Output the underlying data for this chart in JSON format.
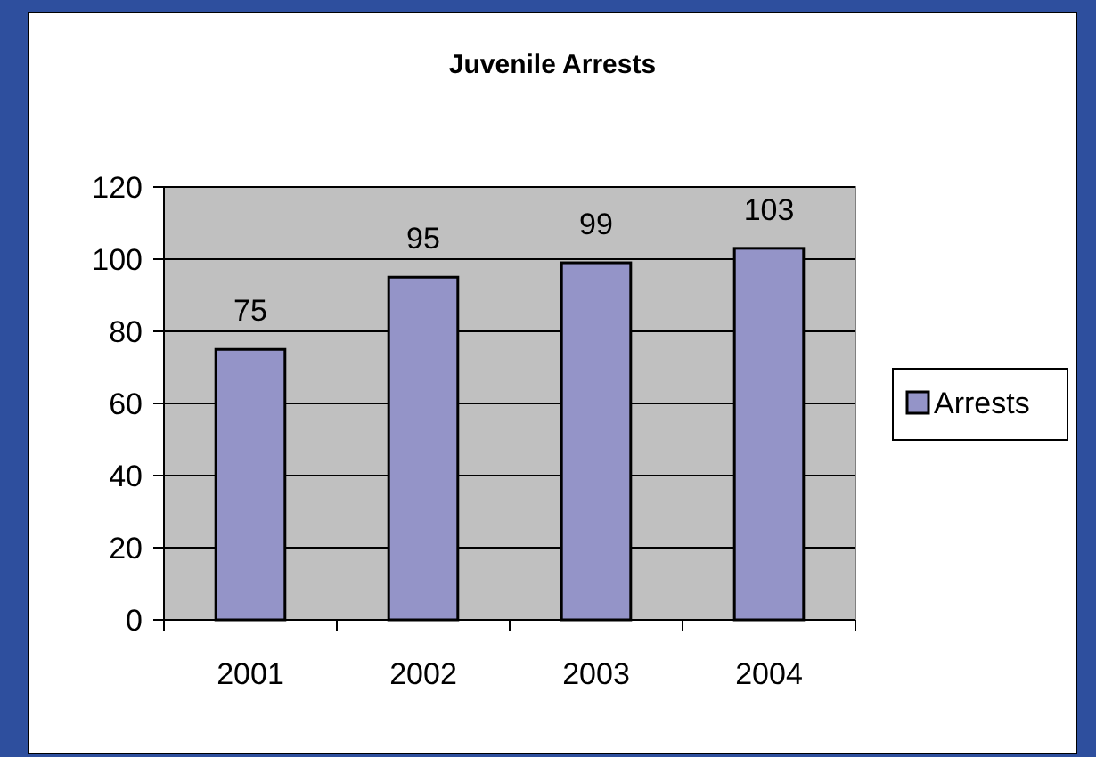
{
  "chart_data": {
    "type": "bar",
    "title": "Juvenile Arrests",
    "categories": [
      "2001",
      "2002",
      "2003",
      "2004"
    ],
    "series": [
      {
        "name": "Arrests",
        "color": "#9494c8",
        "values": [
          75,
          95,
          99,
          103
        ]
      }
    ],
    "ylim": [
      0,
      120
    ],
    "yticks": [
      0,
      20,
      40,
      60,
      80,
      100,
      120
    ],
    "grid": "y",
    "data_labels": true,
    "legend": "right"
  }
}
